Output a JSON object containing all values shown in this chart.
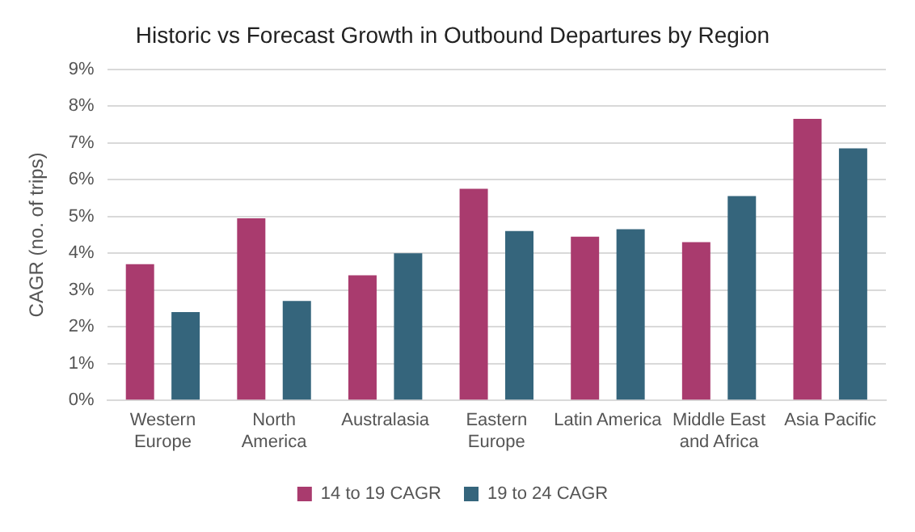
{
  "chart_data": {
    "type": "bar",
    "title": "Historic vs Forecast Growth in Outbound Departures by Region",
    "ylabel": "CAGR (no. of trips)",
    "categories": [
      "Western\nEurope",
      "North\nAmerica",
      "Australasia",
      "Eastern\nEurope",
      "Latin America",
      "Middle East\nand Africa",
      "Asia Pacific"
    ],
    "series": [
      {
        "name": "14 to 19 CAGR",
        "color": "#a93b6e",
        "values": [
          3.7,
          4.95,
          3.4,
          5.75,
          4.45,
          4.3,
          7.65
        ]
      },
      {
        "name": "19 to 24 CAGR",
        "color": "#35657c",
        "values": [
          2.4,
          2.7,
          4.0,
          4.6,
          4.65,
          5.55,
          6.85
        ]
      }
    ],
    "ylim": [
      0,
      9
    ],
    "yticks": [
      {
        "value": 0,
        "label": "0%"
      },
      {
        "value": 1,
        "label": "1%"
      },
      {
        "value": 2,
        "label": "2%"
      },
      {
        "value": 3,
        "label": "3%"
      },
      {
        "value": 4,
        "label": "4%"
      },
      {
        "value": 5,
        "label": "5%"
      },
      {
        "value": 6,
        "label": "6%"
      },
      {
        "value": 7,
        "label": "7%"
      },
      {
        "value": 8,
        "label": "8%"
      },
      {
        "value": 9,
        "label": "9%"
      }
    ],
    "grid": "y",
    "legend": "bottom"
  }
}
